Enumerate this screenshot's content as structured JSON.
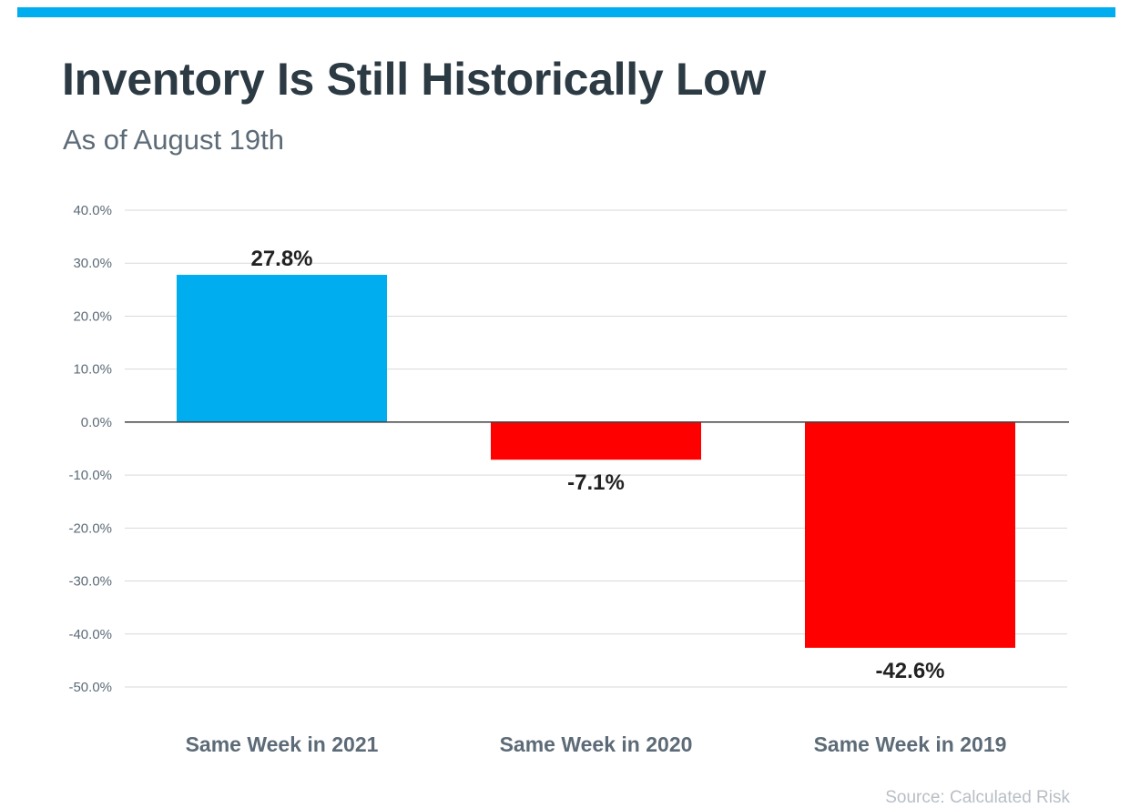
{
  "header": {
    "title": "Inventory Is Still Historically Low",
    "subtitle": "As of August 19th"
  },
  "footer": {
    "source": "Source: Calculated Risk"
  },
  "colors": {
    "accent_bar": "#00adef",
    "positive": "#00adef",
    "negative": "#ff0000",
    "gridline": "#d9d9d9",
    "zero_line": "#404040",
    "tick_text": "#5c6b77",
    "category_text": "#5c6b77",
    "value_text": "#222222"
  },
  "chart_data": {
    "type": "bar",
    "title": "Inventory Is Still Historically Low",
    "subtitle": "As of August 19th",
    "categories": [
      "Same Week in 2021",
      "Same Week in 2020",
      "Same Week in 2019"
    ],
    "values": [
      27.8,
      -7.1,
      -42.6
    ],
    "data_labels": [
      "27.8%",
      "-7.1%",
      "-42.6%"
    ],
    "ylim": [
      -50,
      40
    ],
    "yticks": [
      40,
      30,
      20,
      10,
      0,
      -10,
      -20,
      -30,
      -40,
      -50
    ],
    "ytick_labels": [
      "40.0%",
      "30.0%",
      "20.0%",
      "10.0%",
      "0.0%",
      "-10.0%",
      "-20.0%",
      "-30.0%",
      "-40.0%",
      "-50.0%"
    ],
    "grid": true,
    "legend": "none"
  }
}
